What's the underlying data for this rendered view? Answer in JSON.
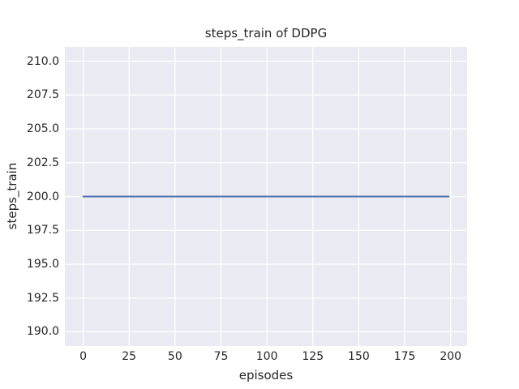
{
  "chart_data": {
    "type": "line",
    "title": "steps_train of DDPG",
    "xlabel": "episodes",
    "ylabel": "steps_train",
    "x_tick_values": [
      0,
      25,
      50,
      75,
      100,
      125,
      150,
      175,
      200
    ],
    "x_tick_labels": [
      "0",
      "25",
      "50",
      "75",
      "100",
      "125",
      "150",
      "175",
      "200"
    ],
    "y_tick_values": [
      190.0,
      192.5,
      195.0,
      197.5,
      200.0,
      202.5,
      205.0,
      207.5,
      210.0
    ],
    "y_tick_labels": [
      "190.0",
      "192.5",
      "195.0",
      "197.5",
      "200.0",
      "202.5",
      "205.0",
      "207.5",
      "210.0"
    ],
    "xlim": [
      -9.95,
      208.95
    ],
    "ylim": [
      188.95,
      211.05
    ],
    "grid": true,
    "legend": "none",
    "series": [
      {
        "name": "steps_train",
        "color": "#4c72b0",
        "x": [
          0,
          199
        ],
        "y": [
          200,
          200
        ]
      }
    ],
    "colors": {
      "line": "#4c72b0",
      "plot_background": "#eaeaf2",
      "grid": "#ffffff",
      "text": "#262626",
      "figure_background": "#ffffff"
    }
  }
}
